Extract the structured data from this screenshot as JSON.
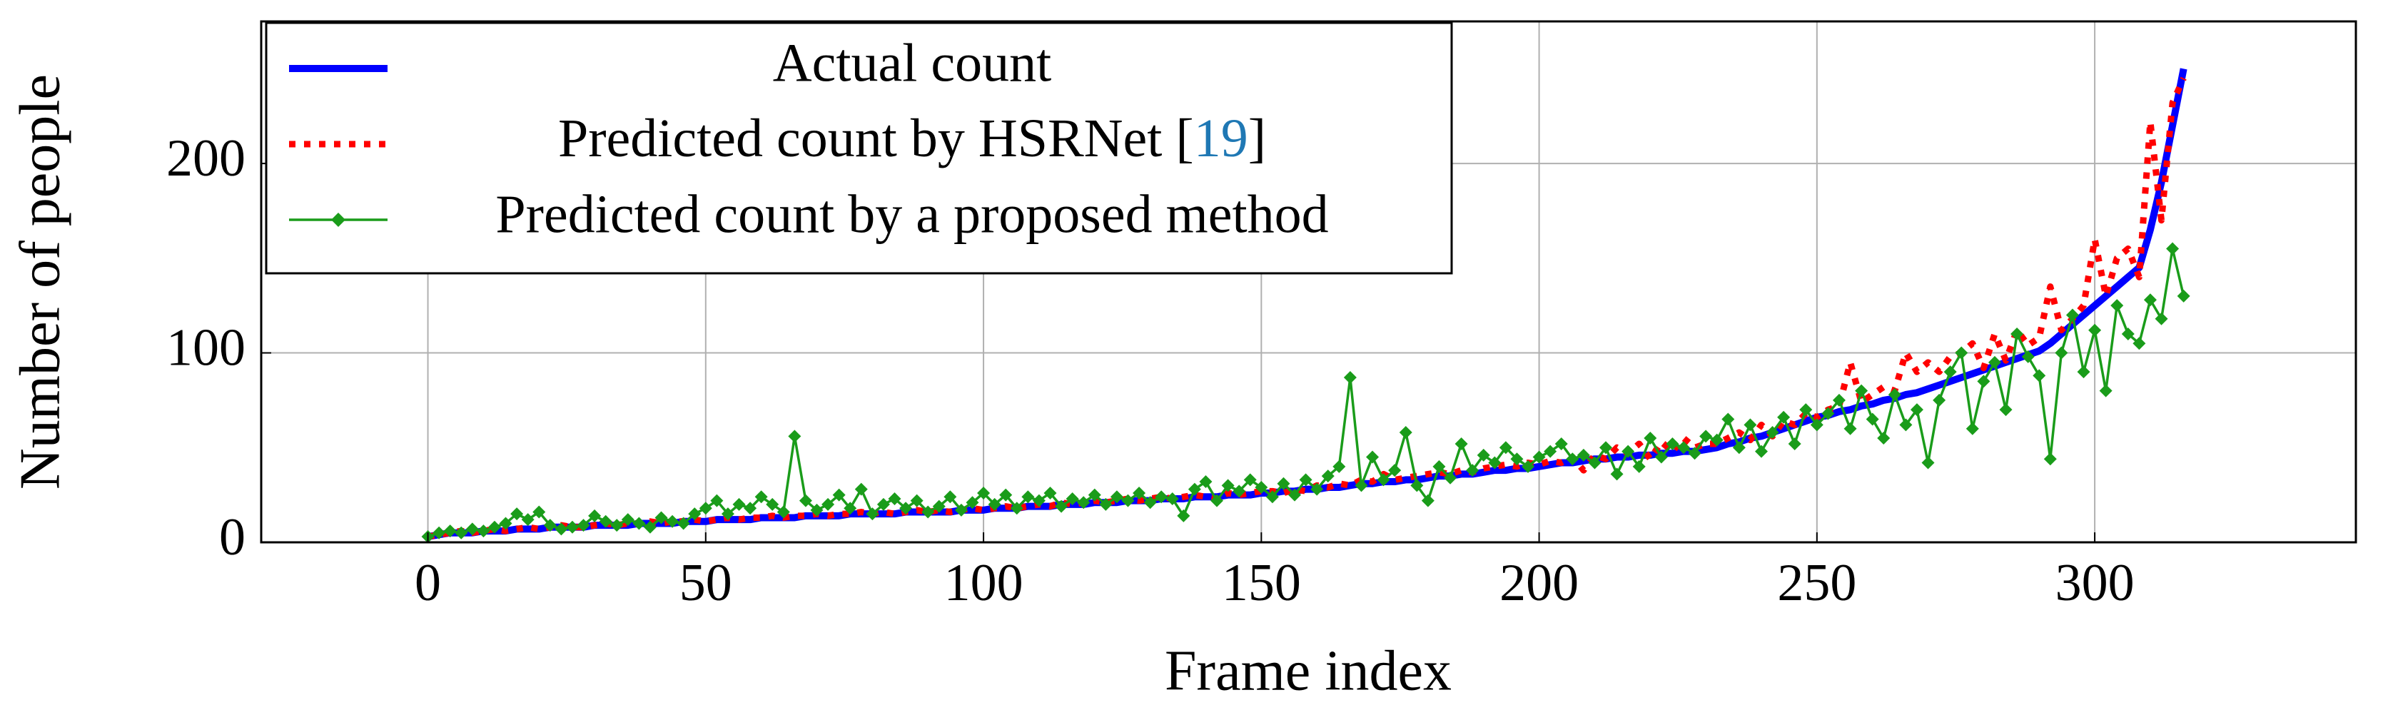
{
  "chart_data": {
    "type": "line",
    "xlabel": "Frame index",
    "ylabel": "Number of people",
    "x": [
      0,
      2,
      4,
      6,
      8,
      10,
      12,
      14,
      16,
      18,
      20,
      22,
      24,
      26,
      28,
      30,
      32,
      34,
      36,
      38,
      40,
      42,
      44,
      46,
      48,
      50,
      52,
      54,
      56,
      58,
      60,
      62,
      64,
      66,
      68,
      70,
      72,
      74,
      76,
      78,
      80,
      82,
      84,
      86,
      88,
      90,
      92,
      94,
      96,
      98,
      100,
      102,
      104,
      106,
      108,
      110,
      112,
      114,
      116,
      118,
      120,
      122,
      124,
      126,
      128,
      130,
      132,
      134,
      136,
      138,
      140,
      142,
      144,
      146,
      148,
      150,
      152,
      154,
      156,
      158,
      160,
      162,
      164,
      166,
      168,
      170,
      172,
      174,
      176,
      178,
      180,
      182,
      184,
      186,
      188,
      190,
      192,
      194,
      196,
      198,
      200,
      202,
      204,
      206,
      208,
      210,
      212,
      214,
      216,
      218,
      220,
      222,
      224,
      226,
      228,
      230,
      232,
      234,
      236,
      238,
      240,
      242,
      244,
      246,
      248,
      250,
      252,
      254,
      256,
      258,
      260,
      262,
      264,
      266,
      268,
      270,
      272,
      274,
      276,
      278,
      280,
      282,
      284,
      286,
      288,
      290,
      292,
      294,
      296,
      298,
      300,
      302,
      304,
      306,
      308,
      310,
      312,
      314,
      316
    ],
    "series": [
      {
        "name": "Actual count",
        "color": "#0000ff",
        "style": "solid",
        "marker": "none",
        "values": [
          3,
          4,
          5,
          5,
          5,
          6,
          6,
          6,
          7,
          7,
          7,
          8,
          8,
          8,
          8,
          9,
          9,
          9,
          9,
          10,
          10,
          10,
          10,
          11,
          11,
          11,
          12,
          12,
          12,
          12,
          13,
          13,
          13,
          13,
          14,
          14,
          14,
          14,
          15,
          15,
          15,
          15,
          15,
          16,
          16,
          16,
          16,
          16,
          17,
          17,
          17,
          18,
          18,
          18,
          19,
          19,
          19,
          20,
          20,
          20,
          21,
          21,
          21,
          22,
          22,
          22,
          23,
          23,
          23,
          24,
          24,
          24,
          25,
          25,
          25,
          26,
          26,
          27,
          27,
          28,
          28,
          29,
          29,
          30,
          31,
          31,
          32,
          32,
          33,
          33,
          34,
          35,
          35,
          36,
          36,
          37,
          38,
          38,
          39,
          39,
          40,
          41,
          42,
          42,
          43,
          44,
          44,
          45,
          45,
          46,
          46,
          47,
          47,
          48,
          48,
          49,
          50,
          52,
          53,
          55,
          56,
          58,
          60,
          62,
          64,
          66,
          67,
          69,
          70,
          72,
          73,
          75,
          76,
          78,
          79,
          81,
          83,
          85,
          87,
          89,
          91,
          93,
          95,
          97,
          99,
          101,
          105,
          110,
          115,
          120,
          125,
          130,
          135,
          140,
          145,
          165,
          190,
          220,
          250
        ]
      },
      {
        "name": "Predicted count by HSRNet [19]",
        "color": "#ff0000",
        "style": "dotted",
        "marker": "none",
        "values": [
          3,
          4,
          5,
          6,
          5,
          6,
          7,
          6,
          7,
          8,
          7,
          8,
          9,
          8,
          8,
          9,
          10,
          9,
          10,
          10,
          11,
          10,
          11,
          11,
          12,
          11,
          12,
          13,
          12,
          13,
          13,
          14,
          13,
          14,
          14,
          15,
          14,
          15,
          15,
          16,
          15,
          16,
          15,
          16,
          17,
          16,
          17,
          16,
          17,
          18,
          17,
          18,
          19,
          18,
          19,
          20,
          19,
          21,
          20,
          21,
          22,
          21,
          22,
          23,
          22,
          23,
          24,
          23,
          24,
          25,
          24,
          23,
          26,
          25,
          26,
          27,
          27,
          26,
          28,
          27,
          30,
          29,
          31,
          30,
          33,
          32,
          36,
          33,
          34,
          35,
          36,
          37,
          36,
          38,
          37,
          39,
          40,
          41,
          40,
          42,
          41,
          43,
          42,
          45,
          38,
          46,
          44,
          50,
          47,
          52,
          44,
          53,
          48,
          55,
          50,
          52,
          52,
          55,
          58,
          54,
          62,
          56,
          64,
          62,
          68,
          66,
          70,
          72,
          95,
          74,
          78,
          82,
          80,
          100,
          90,
          95,
          90,
          98,
          100,
          105,
          92,
          110,
          96,
          112,
          104,
          108,
          135,
          112,
          118,
          125,
          160,
          130,
          150,
          155,
          140,
          222,
          170,
          232,
          245
        ]
      },
      {
        "name": "Predicted count by a proposed method",
        "color": "#1a9c1a",
        "style": "solid",
        "marker": "diamond",
        "values": [
          3,
          5,
          6,
          5,
          7,
          6,
          8,
          10,
          15,
          12,
          16,
          9,
          7,
          8,
          9,
          14,
          11,
          9,
          12,
          10,
          8,
          13,
          11,
          10,
          15,
          18,
          22,
          15,
          20,
          18,
          24,
          20,
          16,
          56,
          22,
          17,
          20,
          25,
          18,
          28,
          15,
          20,
          23,
          18,
          22,
          16,
          19,
          24,
          17,
          21,
          26,
          20,
          25,
          18,
          24,
          22,
          26,
          19,
          23,
          21,
          25,
          20,
          24,
          22,
          26,
          21,
          24,
          23,
          14,
          28,
          32,
          22,
          30,
          27,
          33,
          29,
          24,
          31,
          25,
          33,
          28,
          35,
          40,
          87,
          30,
          45,
          33,
          38,
          58,
          30,
          22,
          40,
          34,
          52,
          38,
          46,
          42,
          50,
          44,
          40,
          45,
          48,
          52,
          44,
          46,
          42,
          50,
          36,
          48,
          40,
          55,
          45,
          52,
          50,
          47,
          56,
          54,
          65,
          50,
          62,
          48,
          58,
          66,
          52,
          70,
          62,
          68,
          75,
          60,
          80,
          65,
          55,
          78,
          62,
          70,
          42,
          75,
          90,
          100,
          60,
          85,
          95,
          70,
          110,
          98,
          88,
          44,
          100,
          120,
          90,
          112,
          80,
          125,
          110,
          105,
          128,
          118,
          155,
          130
        ]
      }
    ],
    "xlim": [
      -30,
      347
    ],
    "ylim": [
      0,
      275
    ],
    "xticks": [
      0,
      50,
      100,
      150,
      200,
      250,
      300
    ],
    "yticks": [
      0,
      100,
      200
    ],
    "grid": true,
    "legend": "upper left"
  }
}
